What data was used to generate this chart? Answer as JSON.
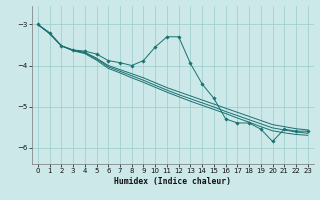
{
  "xlabel": "Humidex (Indice chaleur)",
  "xlim": [
    -0.5,
    23.5
  ],
  "ylim": [
    -6.4,
    -2.55
  ],
  "yticks": [
    -6,
    -5,
    -4,
    -3
  ],
  "xticks": [
    0,
    1,
    2,
    3,
    4,
    5,
    6,
    7,
    8,
    9,
    10,
    11,
    12,
    13,
    14,
    15,
    16,
    17,
    18,
    19,
    20,
    21,
    22,
    23
  ],
  "bg_color": "#cce8e8",
  "grid_color": "#99cccc",
  "line_color": "#1a7070",
  "wiggly_y": [
    -3.0,
    -3.2,
    -3.52,
    -3.62,
    -3.65,
    -3.72,
    -3.88,
    -3.93,
    -4.0,
    -3.88,
    -3.55,
    -3.3,
    -3.3,
    -3.95,
    -4.45,
    -4.8,
    -5.3,
    -5.4,
    -5.4,
    -5.55,
    -5.85,
    -5.55,
    -5.6,
    -5.6
  ],
  "trend1_y": [
    -3.0,
    -3.22,
    -3.52,
    -3.63,
    -3.68,
    -3.82,
    -4.0,
    -4.1,
    -4.2,
    -4.3,
    -4.42,
    -4.54,
    -4.64,
    -4.74,
    -4.84,
    -4.94,
    -5.04,
    -5.14,
    -5.24,
    -5.34,
    -5.44,
    -5.49,
    -5.54,
    -5.57
  ],
  "trend2_y": [
    -3.0,
    -3.22,
    -3.52,
    -3.63,
    -3.69,
    -3.84,
    -4.03,
    -4.14,
    -4.25,
    -4.36,
    -4.48,
    -4.6,
    -4.71,
    -4.81,
    -4.91,
    -5.01,
    -5.12,
    -5.22,
    -5.32,
    -5.42,
    -5.52,
    -5.57,
    -5.62,
    -5.65
  ],
  "trend3_y": [
    -3.0,
    -3.22,
    -3.52,
    -3.64,
    -3.71,
    -3.87,
    -4.07,
    -4.18,
    -4.3,
    -4.41,
    -4.53,
    -4.65,
    -4.76,
    -4.87,
    -4.97,
    -5.07,
    -5.17,
    -5.28,
    -5.38,
    -5.49,
    -5.59,
    -5.64,
    -5.68,
    -5.7
  ]
}
